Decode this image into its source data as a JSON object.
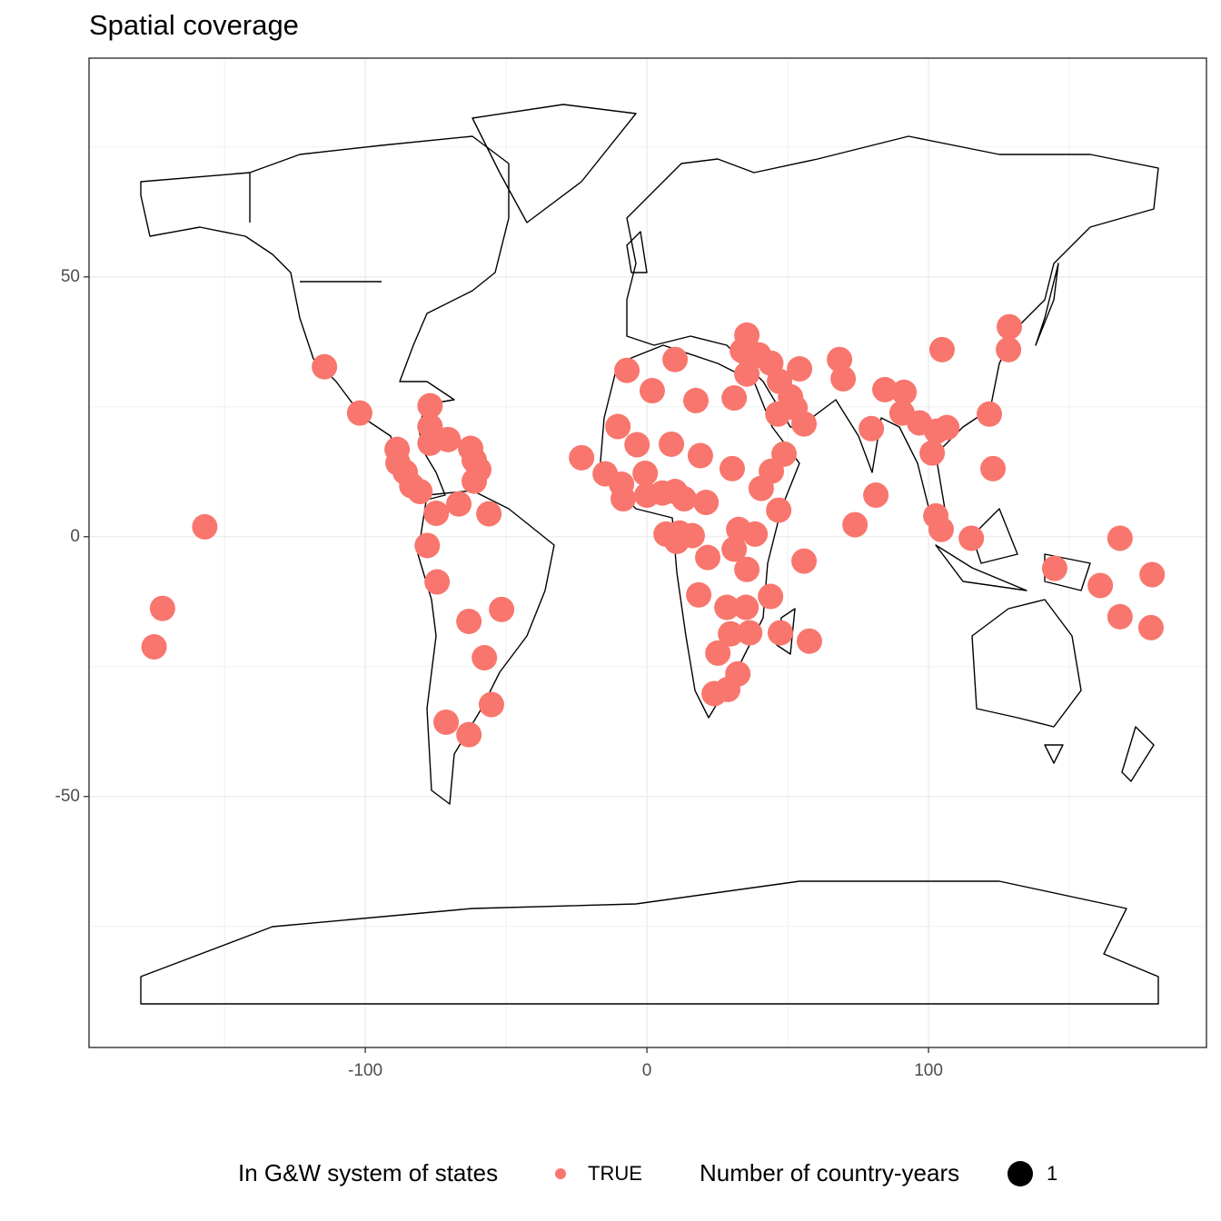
{
  "chart_data": {
    "type": "scatter",
    "title": "Spatial coverage",
    "x": [
      -114.5,
      -102,
      -157,
      -172,
      -175,
      -77,
      -77,
      -77,
      -70.6,
      -88.7,
      -88.4,
      -85.8,
      -83.5,
      -80.6,
      -74.8,
      -66.8,
      -62.6,
      -61.3,
      -59.7,
      -61.3,
      -56.1,
      -78,
      -74.5,
      -63.2,
      -51.6,
      -57.7,
      -55.2,
      -71.3,
      -63.2,
      -23.2,
      -14.8,
      -10.3,
      -7.1,
      1.9,
      10,
      -3.5,
      8.7,
      17.4,
      19,
      31,
      30.3,
      35.5,
      33.9,
      36.8,
      35.5,
      39.7,
      44,
      47.1,
      51,
      54.2,
      46.5,
      52.6,
      55.8,
      48.7,
      44.2,
      40.6,
      46.8,
      -9,
      -8.4,
      -0.6,
      0,
      5.5,
      10,
      13.2,
      21,
      6.8,
      11.6,
      16.1,
      10.6,
      32.6,
      38.4,
      31,
      21.6,
      35.5,
      55.8,
      18.4,
      28.4,
      35.2,
      43.9,
      47.4,
      57.7,
      29.7,
      36.5,
      25.2,
      32.3,
      28.7,
      23.9,
      68.4,
      69.7,
      79.7,
      81.3,
      73.9,
      84.5,
      91.3,
      90.6,
      96.8,
      101.3,
      102.9,
      106.5,
      104.8,
      121.6,
      122.9,
      102.6,
      104.5,
      115.2,
      128.7,
      128.4,
      144.8,
      161,
      168,
      168,
      179.4,
      179
    ],
    "series": [
      {
        "name": "TRUE",
        "color": "#F8766D",
        "values": [
          32.7,
          23.8,
          1.9,
          -13.8,
          -21.2,
          25.2,
          21.2,
          18,
          18.7,
          16.8,
          14.2,
          12.4,
          9.8,
          8.7,
          4.5,
          6.3,
          17,
          14.7,
          12.9,
          10.7,
          4.4,
          -1.7,
          -8.7,
          -16.3,
          -14,
          -23.3,
          -32.3,
          -35.7,
          -38.1,
          15.2,
          12.1,
          21.2,
          32,
          28.1,
          34.1,
          17.7,
          17.8,
          26.2,
          15.6,
          26.7,
          13.1,
          38.8,
          35.8,
          34.4,
          31.3,
          35,
          33.4,
          29.9,
          26.9,
          32.3,
          23.6,
          24.8,
          21.7,
          15.9,
          12.6,
          9.3,
          5.1,
          10.1,
          7.3,
          12.2,
          8,
          8.4,
          8.7,
          7.3,
          6.6,
          0.5,
          0.7,
          0.2,
          -0.9,
          1.4,
          0.5,
          -2.4,
          -4,
          -6.3,
          -4.7,
          -11.2,
          -13.6,
          -13.6,
          -11.5,
          -18.5,
          -20.1,
          -18.7,
          -18.5,
          -22.4,
          -26.4,
          -29.4,
          -30.2,
          34.1,
          30.4,
          20.8,
          8,
          2.3,
          28.3,
          27.8,
          23.8,
          21.9,
          16.1,
          20.3,
          21,
          36,
          23.6,
          13.1,
          4,
          1.4,
          -0.3,
          40.4,
          36,
          -6.1,
          -9.4,
          -0.3,
          -15.4,
          -7.3,
          -17.5
        ]
      }
    ],
    "legend_title": "In G&W system of states",
    "size_legend": {
      "title": "Number of country-years",
      "values": [
        1
      ]
    },
    "xlim": [
      -198.1,
      198.7
    ],
    "ylim": [
      -98.3,
      92.1
    ],
    "xticks": [
      -100,
      0,
      100
    ],
    "yticks": [
      -50,
      0,
      50
    ],
    "x_minor_gridlines": [
      -150,
      -50,
      50,
      150
    ],
    "y_minor_gridlines": [
      -75,
      -25,
      25,
      75
    ],
    "grid": true,
    "legend_position": "bottom"
  }
}
